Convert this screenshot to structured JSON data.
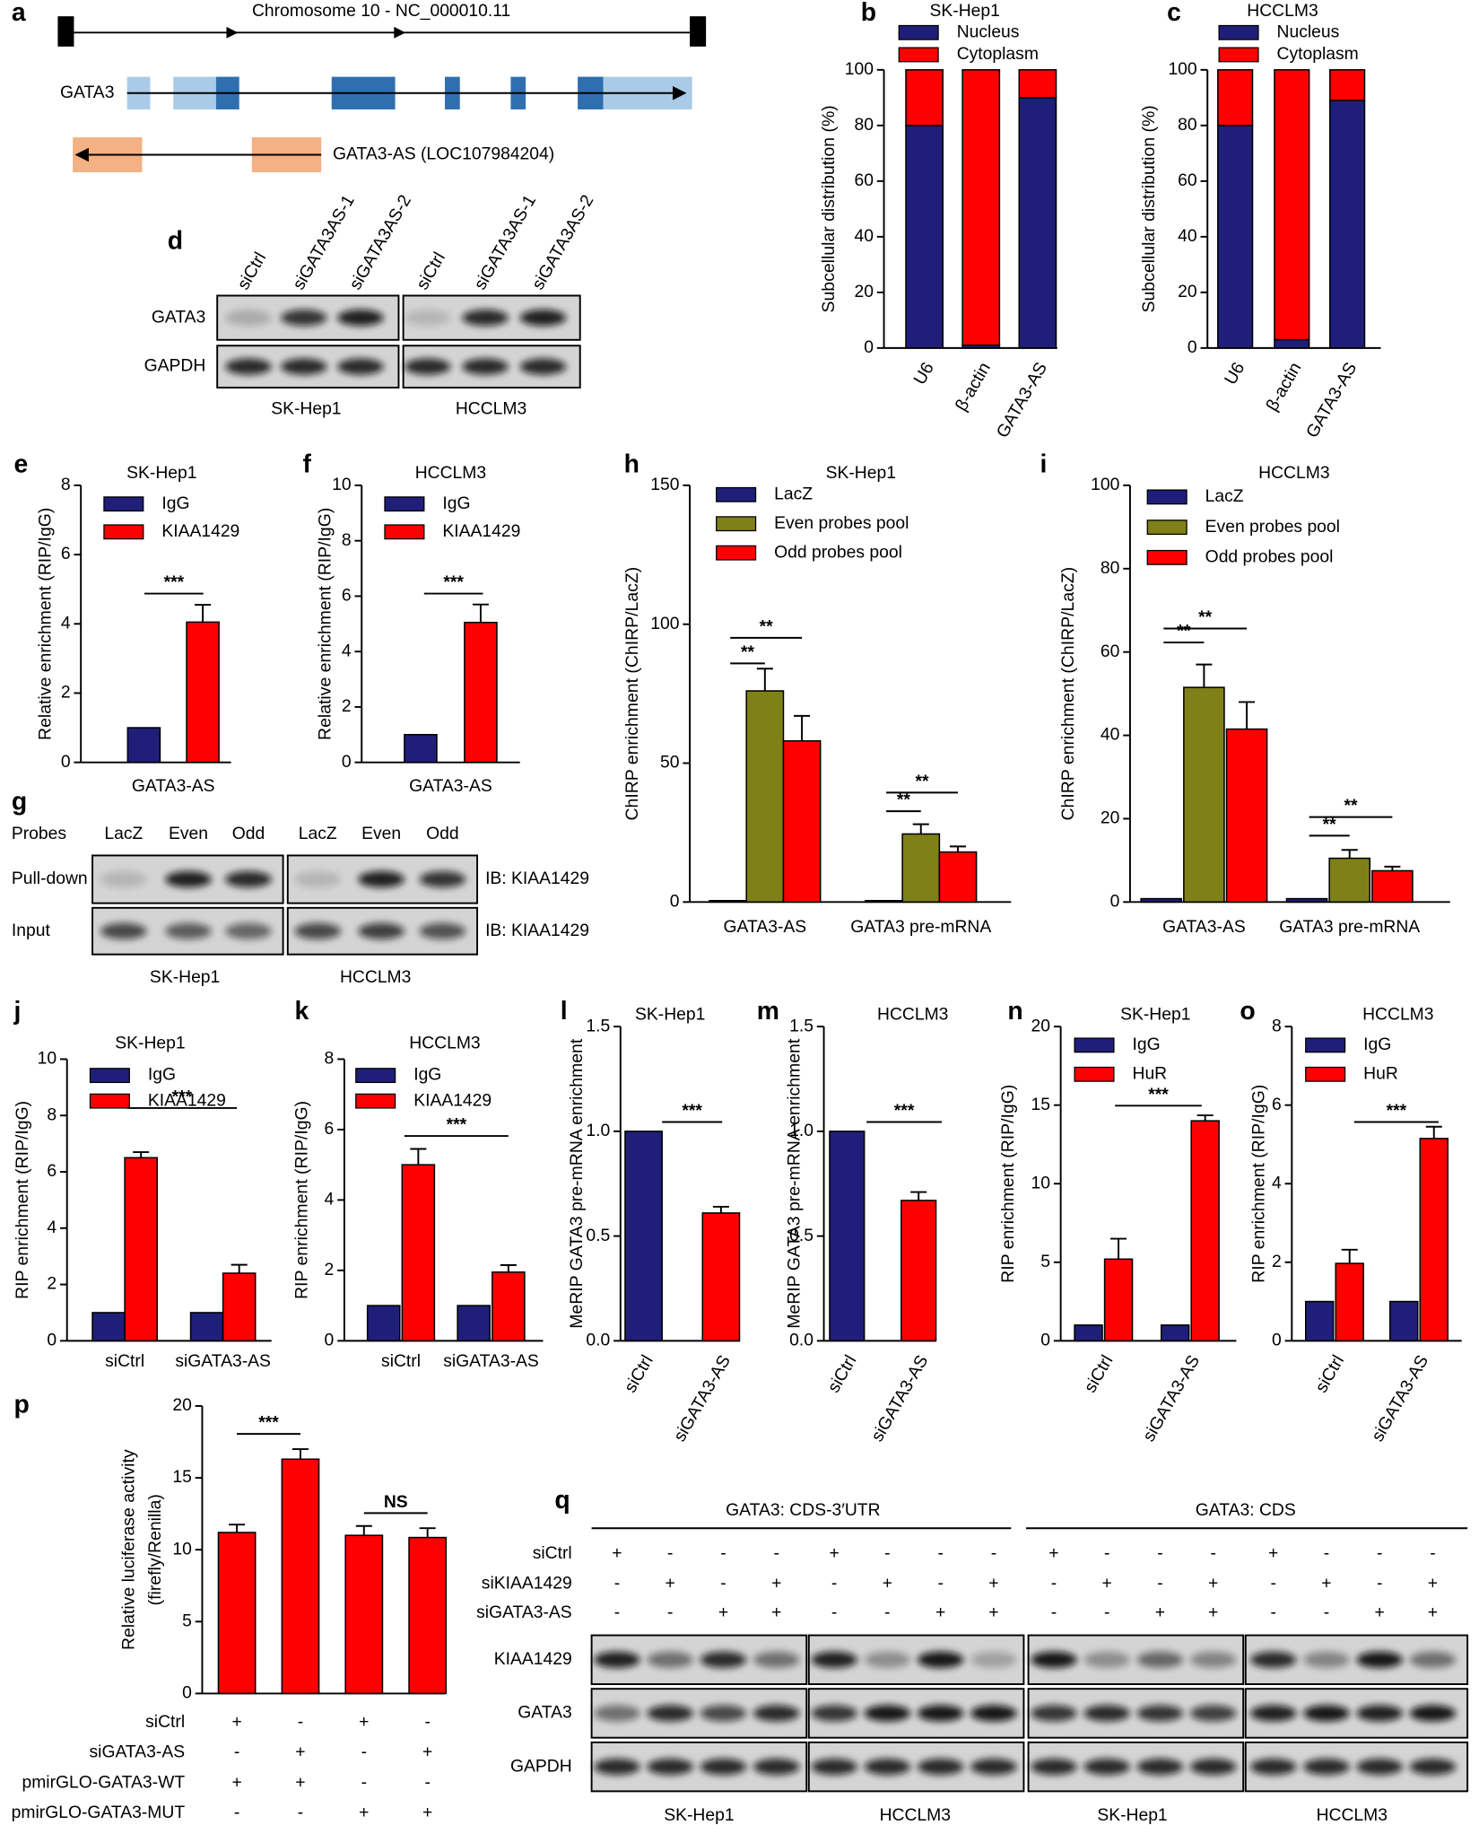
{
  "diagram": {
    "panel": "a",
    "chromosome": "Chromosome 10 - NC_000010.11",
    "gene": "GATA3",
    "antisense": "GATA3-AS (LOC107984204)"
  },
  "chart_data": [
    {
      "type": "stacked_bar",
      "panel": "b",
      "title": "SK-Hep1",
      "ylabel": "Subcellular distribution (%)",
      "categories": [
        "U6",
        "β-actin",
        "GATA3-AS"
      ],
      "series": [
        {
          "name": "Nucleus",
          "color": "#1f1f7a",
          "values": [
            80,
            1,
            90
          ]
        },
        {
          "name": "Cytoplasm",
          "color": "#ff0000",
          "values": [
            20,
            99,
            10
          ]
        }
      ],
      "ylim": [
        0,
        100
      ],
      "yticks": [
        0,
        20,
        40,
        60,
        80,
        100
      ]
    },
    {
      "type": "stacked_bar",
      "panel": "c",
      "title": "HCCLM3",
      "ylabel": "Subcellular distribution (%)",
      "categories": [
        "U6",
        "β-actin",
        "GATA3-AS"
      ],
      "series": [
        {
          "name": "Nucleus",
          "color": "#1f1f7a",
          "values": [
            80,
            3,
            89
          ]
        },
        {
          "name": "Cytoplasm",
          "color": "#ff0000",
          "values": [
            20,
            97,
            11
          ]
        }
      ],
      "ylim": [
        0,
        100
      ],
      "yticks": [
        0,
        20,
        40,
        60,
        80,
        100
      ]
    },
    {
      "type": "bar",
      "panel": "e",
      "title": "SK-Hep1",
      "ylabel": "Relative enrichment (RIP/IgG)",
      "categories": [
        "GATA3-AS"
      ],
      "series": [
        {
          "name": "IgG",
          "color": "#1f1f7a",
          "values": [
            1
          ]
        },
        {
          "name": "KIAA1429",
          "color": "#ff0000",
          "values": [
            4.05
          ],
          "errors": [
            0.5
          ]
        }
      ],
      "ylim": [
        0,
        8
      ],
      "yticks": [
        0,
        2,
        4,
        6,
        8
      ],
      "significance": [
        "***"
      ]
    },
    {
      "type": "bar",
      "panel": "f",
      "title": "HCCLM3",
      "ylabel": "Relative enrichment (RIP/IgG)",
      "categories": [
        "GATA3-AS"
      ],
      "series": [
        {
          "name": "IgG",
          "color": "#1f1f7a",
          "values": [
            1
          ]
        },
        {
          "name": "KIAA1429",
          "color": "#ff0000",
          "values": [
            5.05
          ],
          "errors": [
            0.65
          ]
        }
      ],
      "ylim": [
        0,
        10
      ],
      "yticks": [
        0,
        2,
        4,
        6,
        8,
        10
      ],
      "significance": [
        "***"
      ]
    },
    {
      "type": "bar",
      "panel": "h",
      "title": "SK-Hep1",
      "ylabel": "ChIRP enrichment (ChIRP/LacZ)",
      "categories": [
        "GATA3-AS",
        "GATA3 pre-mRNA"
      ],
      "series": [
        {
          "name": "LacZ",
          "color": "#1f1f7a",
          "values": [
            0.5,
            0.5
          ]
        },
        {
          "name": "Even probes pool",
          "color": "#808019",
          "values": [
            76,
            24.5
          ],
          "errors": [
            8,
            3.5
          ]
        },
        {
          "name": "Odd probes pool",
          "color": "#ff0000",
          "values": [
            58,
            18
          ],
          "errors": [
            9,
            2
          ]
        }
      ],
      "ylim": [
        0,
        150
      ],
      "yticks": [
        0,
        50,
        100,
        150
      ],
      "significance": [
        "**",
        "**",
        "**",
        "**"
      ]
    },
    {
      "type": "bar",
      "panel": "i",
      "title": "HCCLM3",
      "ylabel": "ChIRP enrichment (ChIRP/LacZ)",
      "categories": [
        "GATA3-AS",
        "GATA3 pre-mRNA"
      ],
      "series": [
        {
          "name": "LacZ",
          "color": "#1f1f7a",
          "values": [
            0.8,
            0.8
          ]
        },
        {
          "name": "Even probes pool",
          "color": "#808019",
          "values": [
            51.5,
            10.5
          ],
          "errors": [
            5.5,
            2
          ]
        },
        {
          "name": "Odd probes pool",
          "color": "#ff0000",
          "values": [
            41.5,
            7.5
          ],
          "errors": [
            6.5,
            1
          ]
        }
      ],
      "ylim": [
        0,
        100
      ],
      "yticks": [
        0,
        20,
        40,
        60,
        80,
        100
      ],
      "significance": [
        "**",
        "**",
        "**",
        "**"
      ]
    },
    {
      "type": "bar",
      "panel": "j",
      "title": "SK-Hep1",
      "ylabel": "RIP enrichment (RIP/IgG)",
      "categories": [
        "siCtrl",
        "siGATA3-AS"
      ],
      "series": [
        {
          "name": "IgG",
          "color": "#1f1f7a",
          "values": [
            1,
            1
          ]
        },
        {
          "name": "KIAA1429",
          "color": "#ff0000",
          "values": [
            6.5,
            2.4
          ],
          "errors": [
            0.2,
            0.3
          ]
        }
      ],
      "ylim": [
        0,
        10
      ],
      "yticks": [
        0,
        2,
        4,
        6,
        8,
        10
      ],
      "significance": [
        "***"
      ]
    },
    {
      "type": "bar",
      "panel": "k",
      "title": "HCCLM3",
      "ylabel": "RIP enrichment (RIP/IgG)",
      "categories": [
        "siCtrl",
        "siGATA3-AS"
      ],
      "series": [
        {
          "name": "IgG",
          "color": "#1f1f7a",
          "values": [
            1,
            1
          ]
        },
        {
          "name": "KIAA1429",
          "color": "#ff0000",
          "values": [
            5,
            1.95
          ],
          "errors": [
            0.45,
            0.2
          ]
        }
      ],
      "ylim": [
        0,
        8
      ],
      "yticks": [
        0,
        2,
        4,
        6,
        8
      ],
      "significance": [
        "***"
      ]
    },
    {
      "type": "bar",
      "panel": "l",
      "title": "SK-Hep1",
      "ylabel": "MeRIP GATA3 pre-mRNA enrichment",
      "categories": [
        "siCtrl",
        "siGATA3-AS"
      ],
      "values": [
        1,
        0.61
      ],
      "errors": [
        null,
        0.03
      ],
      "colors": [
        "#1f1f7a",
        "#ff0000"
      ],
      "ylim": [
        0,
        1.5
      ],
      "yticks": [
        {
          "value": 0,
          "label": "0.0"
        },
        0.5,
        {
          "value": 1,
          "label": "1.0"
        },
        1.5
      ],
      "significance": [
        "***"
      ]
    },
    {
      "type": "bar",
      "panel": "m",
      "title": "HCCLM3",
      "ylabel": "MeRIP GATA3 pre-mRNA enrichment",
      "categories": [
        "siCtrl",
        "siGATA3-AS"
      ],
      "values": [
        1,
        0.67
      ],
      "errors": [
        null,
        0.04
      ],
      "colors": [
        "#1f1f7a",
        "#ff0000"
      ],
      "ylim": [
        0,
        1.5
      ],
      "yticks": [
        {
          "value": 0,
          "label": "0.0"
        },
        0.5,
        {
          "value": 1,
          "label": "1.0"
        },
        1.5
      ],
      "significance": [
        "***"
      ]
    },
    {
      "type": "bar",
      "panel": "n",
      "title": "SK-Hep1",
      "ylabel": "RIP enrichment (RIP/IgG)",
      "categories": [
        "siCtrl",
        "siGATA3-AS"
      ],
      "series": [
        {
          "name": "IgG",
          "color": "#1f1f7a",
          "values": [
            1,
            1
          ]
        },
        {
          "name": "HuR",
          "color": "#ff0000",
          "values": [
            5.2,
            14
          ],
          "errors": [
            1.3,
            0.35
          ]
        }
      ],
      "ylim": [
        0,
        20
      ],
      "yticks": [
        0,
        5,
        10,
        15,
        20
      ],
      "significance": [
        "***"
      ]
    },
    {
      "type": "bar",
      "panel": "o",
      "title": "HCCLM3",
      "ylabel": "RIP enrichment (RIP/IgG)",
      "categories": [
        "siCtrl",
        "siGATA3-AS"
      ],
      "series": [
        {
          "name": "IgG",
          "color": "#1f1f7a",
          "values": [
            1,
            1
          ]
        },
        {
          "name": "HuR",
          "color": "#ff0000",
          "values": [
            1.97,
            5.15
          ],
          "errors": [
            0.35,
            0.3
          ]
        }
      ],
      "ylim": [
        0,
        8
      ],
      "yticks": [
        0,
        2,
        4,
        6,
        8
      ],
      "significance": [
        "***"
      ]
    },
    {
      "type": "bar",
      "panel": "p",
      "ylabel": [
        "Relative luciferase activity",
        "(firefly/Renilla)"
      ],
      "values": [
        11.2,
        16.3,
        11,
        10.85
      ],
      "errors": [
        0.55,
        0.7,
        0.65,
        0.65
      ],
      "color": "#ff0000",
      "ylim": [
        0,
        20
      ],
      "yticks": [
        0,
        5,
        10,
        15,
        20
      ],
      "significance": [
        "***",
        "NS"
      ],
      "conditions": [
        {
          "name": "siCtrl",
          "marks": [
            "+",
            "-",
            "+",
            "-"
          ]
        },
        {
          "name": "siGATA3-AS",
          "marks": [
            "-",
            "+",
            "-",
            "+"
          ]
        },
        {
          "name": "pmirGLO-GATA3-WT",
          "marks": [
            "+",
            "+",
            "-",
            "-"
          ]
        },
        {
          "name": "pmirGLO-GATA3-MUT",
          "marks": [
            "-",
            "-",
            "+",
            "+"
          ]
        }
      ]
    }
  ],
  "blots": [
    {
      "panel": "d",
      "lanes": [
        "siCtrl",
        "siGATA3AS-1",
        "siGATA3AS-2",
        "siCtrl",
        "siGATA3AS-1",
        "siGATA3AS-2"
      ],
      "rows": [
        "GATA3",
        "GAPDH"
      ],
      "groups": [
        "SK-Hep1",
        "HCCLM3"
      ]
    },
    {
      "panel": "g",
      "lane_header": "Probes",
      "lanes": [
        "LacZ",
        "Even",
        "Odd",
        "LacZ",
        "Even",
        "Odd"
      ],
      "rows": [
        "Pull-down",
        "Input"
      ],
      "antibodies": [
        "IB: KIAA1429",
        "IB: KIAA1429"
      ],
      "groups": [
        "SK-Hep1",
        "HCCLM3"
      ]
    },
    {
      "panel": "q",
      "headers": [
        "GATA3: CDS-3′UTR",
        "GATA3: CDS"
      ],
      "conditions": [
        {
          "name": "siCtrl",
          "marks": [
            "+",
            "-",
            "-",
            "-",
            "+",
            "-",
            "-",
            "-",
            "+",
            "-",
            "-",
            "-",
            "+",
            "-",
            "-",
            "-"
          ]
        },
        {
          "name": "siKIAA1429",
          "marks": [
            "-",
            "+",
            "-",
            "+",
            "-",
            "+",
            "-",
            "+",
            "-",
            "+",
            "-",
            "+",
            "-",
            "+",
            "-",
            "+"
          ]
        },
        {
          "name": "siGATA3-AS",
          "marks": [
            "-",
            "-",
            "+",
            "+",
            "-",
            "-",
            "+",
            "+",
            "-",
            "-",
            "+",
            "+",
            "-",
            "-",
            "+",
            "+"
          ]
        }
      ],
      "rows": [
        "KIAA1429",
        "GATA3",
        "GAPDH"
      ],
      "groups": [
        "SK-Hep1",
        "HCCLM3",
        "SK-Hep1",
        "HCCLM3"
      ]
    }
  ]
}
